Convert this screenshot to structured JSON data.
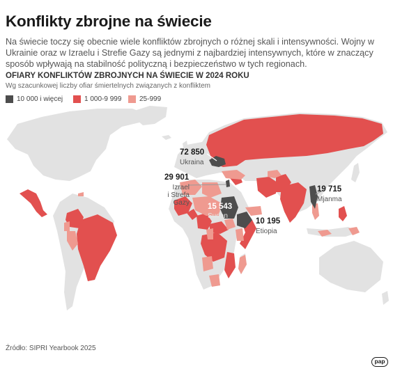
{
  "title": "Konflikty zbrojne na świecie",
  "intro": "Na świecie toczy się obecnie wiele konfliktów zbrojnych o różnej skali i intensywności. Wojny w Ukrainie oraz w Izraelu i Strefie Gazy są jednymi z najbardziej intensywnych, które w znaczący sposób wpływają na stabilność polityczną i bezpieczeństwo w tych regionach.",
  "subtitle": "OFIARY KONFLIKTÓW ZBROJNYCH NA ŚWIECIE W 2024 ROKU",
  "note": "Wg szacunkowej liczby ofiar śmiertelnych związanych z konfliktem",
  "legend": [
    {
      "label": "10 000 i więcej",
      "color": "#4d4d4d"
    },
    {
      "label": "1 000-9 999",
      "color": "#e2504f"
    },
    {
      "label": "25-999",
      "color": "#ef9a90"
    }
  ],
  "colors": {
    "land": "#e2e2e2",
    "high": "#4d4d4d",
    "medium": "#e2504f",
    "low": "#ef9a90"
  },
  "annotations": [
    {
      "value": "72 850",
      "name": "Ukraina"
    },
    {
      "value": "29 901",
      "name": "Izrael\ni Strefa Gazy"
    },
    {
      "value": "15 543",
      "name": "Sudan"
    },
    {
      "value": "10 195",
      "name": "Etiopia"
    },
    {
      "value": "19 715",
      "name": "Mjanma"
    }
  ],
  "source": "Źródło: SIPRI Yearbook 2025",
  "logo": "pap"
}
